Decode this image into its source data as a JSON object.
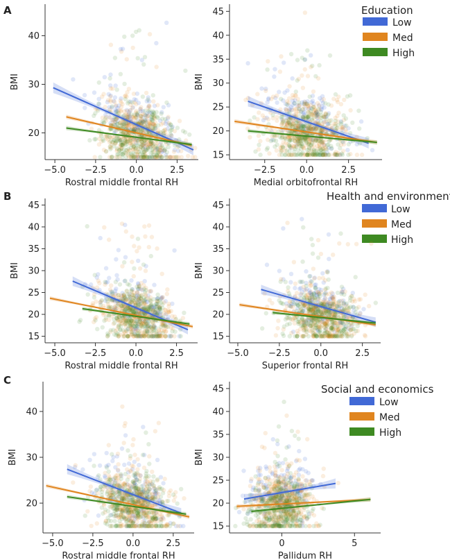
{
  "panel_labels": [
    "A",
    "B",
    "C"
  ],
  "legends": [
    {
      "title": "Education",
      "items": [
        "Low",
        "Med",
        "High"
      ]
    },
    {
      "title": "Health and environment",
      "items": [
        "Low",
        "Med",
        "High"
      ]
    },
    {
      "title": "Social and economics",
      "items": [
        "Low",
        "Med",
        "High"
      ]
    }
  ],
  "colors": {
    "Low": "#4169d6",
    "Med": "#e0851f",
    "High": "#3e8a22"
  },
  "chart_data": [
    {
      "type": "scatter",
      "panel": "A",
      "xlabel": "Rostral middle frontal RH",
      "ylabel": "BMI",
      "xticks": [
        -5.0,
        -2.5,
        0.0,
        2.5
      ],
      "xtick_labels": [
        "−5.0",
        "−2.5",
        "0.0",
        "2.5"
      ],
      "yticks": [
        20,
        30,
        40
      ],
      "xlim": [
        -5.6,
        3.8
      ],
      "ylim": [
        14.5,
        46.5
      ],
      "grid": false,
      "cloud": {
        "x_center": 0.0,
        "x_spread": 1.15,
        "y_center": 19.5,
        "y_spread": 3.8,
        "x_min": -5.2,
        "x_max": 3.6,
        "y_min": 15,
        "y_max": 46
      },
      "series": [
        {
          "name": "Low",
          "x": [
            -5.1,
            3.5
          ],
          "y": [
            29.3,
            16.5
          ]
        },
        {
          "name": "Med",
          "x": [
            -4.3,
            3.4
          ],
          "y": [
            23.3,
            17.4
          ]
        },
        {
          "name": "High",
          "x": [
            -4.3,
            3.4
          ],
          "y": [
            21.0,
            17.6
          ]
        }
      ]
    },
    {
      "type": "scatter",
      "panel": "A",
      "xlabel": "Medial orbitofrontal RH",
      "ylabel": "BMI",
      "xticks": [
        -2.5,
        0.0,
        2.5
      ],
      "xtick_labels": [
        "−2.5",
        "0.0",
        "2.5"
      ],
      "yticks": [
        15,
        20,
        25,
        30,
        35,
        40,
        45
      ],
      "xlim": [
        -4.6,
        4.5
      ],
      "ylim": [
        14,
        46.5
      ],
      "grid": false,
      "cloud": {
        "x_center": 0.0,
        "x_spread": 1.2,
        "y_center": 19.5,
        "y_spread": 3.8,
        "x_min": -4.3,
        "x_max": 4.2,
        "y_min": 15,
        "y_max": 45.5
      },
      "series": [
        {
          "name": "Low",
          "x": [
            -3.5,
            3.7
          ],
          "y": [
            26.2,
            17.4
          ]
        },
        {
          "name": "Med",
          "x": [
            -4.3,
            4.2
          ],
          "y": [
            22.0,
            17.6
          ]
        },
        {
          "name": "High",
          "x": [
            -3.5,
            4.2
          ],
          "y": [
            20.0,
            17.6
          ]
        }
      ]
    },
    {
      "type": "scatter",
      "panel": "B",
      "xlabel": "Rostral middle frontal RH",
      "ylabel": "BMI",
      "xticks": [
        -5.0,
        -2.5,
        0.0,
        2.5
      ],
      "xtick_labels": [
        "−5.0",
        "−2.5",
        "0.0",
        "2.5"
      ],
      "yticks": [
        15,
        20,
        25,
        30,
        35,
        40,
        45
      ],
      "xlim": [
        -5.6,
        3.8
      ],
      "ylim": [
        13.5,
        46.5
      ],
      "grid": false,
      "cloud": {
        "x_center": 0.0,
        "x_spread": 1.15,
        "y_center": 19.5,
        "y_spread": 3.8,
        "x_min": -5.2,
        "x_max": 3.6,
        "y_min": 15,
        "y_max": 45.5
      },
      "series": [
        {
          "name": "Low",
          "x": [
            -3.9,
            3.2
          ],
          "y": [
            27.6,
            16.5
          ]
        },
        {
          "name": "Med",
          "x": [
            -5.3,
            3.5
          ],
          "y": [
            23.7,
            17.2
          ]
        },
        {
          "name": "High",
          "x": [
            -3.3,
            3.3
          ],
          "y": [
            21.3,
            17.8
          ]
        }
      ]
    },
    {
      "type": "scatter",
      "panel": "B",
      "xlabel": "Superior frontal RH",
      "ylabel": "BMI",
      "xticks": [
        -5.0,
        -2.5,
        0.0,
        2.5
      ],
      "xtick_labels": [
        "−5.0",
        "−2.5",
        "0.0",
        "2.5"
      ],
      "yticks": [
        15,
        20,
        25,
        30,
        35,
        40,
        45
      ],
      "xlim": [
        -5.5,
        3.6
      ],
      "ylim": [
        13.5,
        46.5
      ],
      "grid": false,
      "cloud": {
        "x_center": 0.0,
        "x_spread": 1.15,
        "y_center": 19.5,
        "y_spread": 3.8,
        "x_min": -5.0,
        "x_max": 3.3,
        "y_min": 15,
        "y_max": 45.5
      },
      "series": [
        {
          "name": "Low",
          "x": [
            -3.6,
            3.3
          ],
          "y": [
            25.7,
            18.2
          ]
        },
        {
          "name": "Med",
          "x": [
            -4.9,
            3.3
          ],
          "y": [
            22.2,
            17.6
          ]
        },
        {
          "name": "High",
          "x": [
            -2.9,
            3.3
          ],
          "y": [
            20.4,
            18.0
          ]
        }
      ]
    },
    {
      "type": "scatter",
      "panel": "C",
      "xlabel": "Rostral middle frontal RH",
      "ylabel": "BMI",
      "xticks": [
        -5.0,
        -2.5,
        0.0,
        2.5
      ],
      "xtick_labels": [
        "−5.0",
        "−2.5",
        "0.0",
        "2.5"
      ],
      "yticks": [
        20,
        30,
        40
      ],
      "xlim": [
        -5.6,
        3.8
      ],
      "ylim": [
        13.5,
        46.5
      ],
      "grid": false,
      "cloud": {
        "x_center": 0.0,
        "x_spread": 1.15,
        "y_center": 19.5,
        "y_spread": 3.8,
        "x_min": -5.2,
        "x_max": 3.6,
        "y_min": 15,
        "y_max": 46
      },
      "series": [
        {
          "name": "Low",
          "x": [
            -4.1,
            3.0
          ],
          "y": [
            27.4,
            17.8
          ]
        },
        {
          "name": "Med",
          "x": [
            -5.4,
            3.5
          ],
          "y": [
            23.8,
            17.0
          ]
        },
        {
          "name": "High",
          "x": [
            -4.1,
            3.3
          ],
          "y": [
            21.4,
            17.6
          ]
        }
      ]
    },
    {
      "type": "scatter",
      "panel": "C",
      "xlabel": "Pallidum RH",
      "ylabel": "BMI",
      "xticks": [
        0,
        5
      ],
      "xtick_labels": [
        "0",
        "5"
      ],
      "yticks": [
        15,
        20,
        25,
        30,
        35,
        40,
        45
      ],
      "xlim": [
        -3.6,
        6.8
      ],
      "ylim": [
        13.5,
        46.5
      ],
      "grid": false,
      "cloud": {
        "x_center": 0.0,
        "x_spread": 1.1,
        "y_center": 19.5,
        "y_spread": 3.8,
        "x_min": -3.2,
        "x_max": 6.3,
        "y_min": 15,
        "y_max": 45.5
      },
      "series": [
        {
          "name": "Low",
          "x": [
            -2.6,
            3.7
          ],
          "y": [
            20.9,
            24.3
          ]
        },
        {
          "name": "Med",
          "x": [
            -3.1,
            6.1
          ],
          "y": [
            19.3,
            20.8
          ]
        },
        {
          "name": "High",
          "x": [
            -2.1,
            6.1
          ],
          "y": [
            18.2,
            20.8
          ]
        }
      ]
    }
  ]
}
